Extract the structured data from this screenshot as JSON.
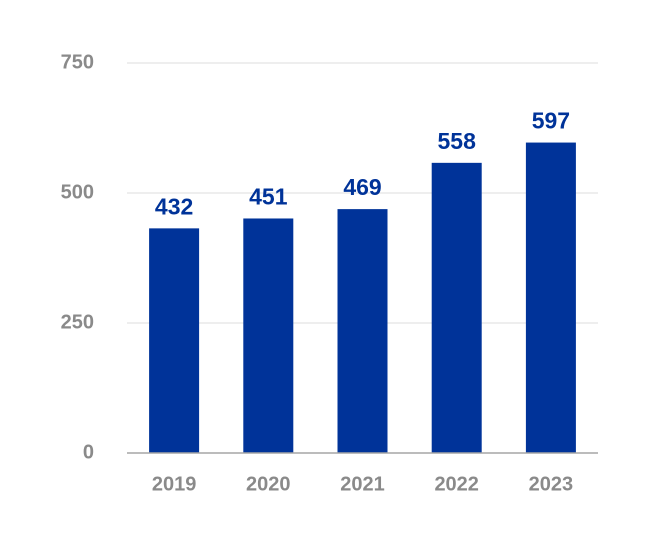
{
  "chart_data": {
    "type": "bar",
    "categories": [
      "2019",
      "2020",
      "2021",
      "2022",
      "2023"
    ],
    "values": [
      432,
      451,
      469,
      558,
      597
    ],
    "data_labels": [
      "432",
      "451",
      "469",
      "558",
      "597"
    ],
    "title": "",
    "xlabel": "",
    "ylabel": "",
    "ylim": [
      0,
      750
    ],
    "y_ticks": [
      0,
      250,
      500,
      750
    ],
    "y_tick_labels": [
      "0",
      "250",
      "500",
      "750"
    ],
    "grid": true,
    "legend": "none",
    "bar_color": "#003399",
    "label_color": "#003399",
    "tick_label_color": "#8a8a8a",
    "grid_color": "#dcdcdc"
  }
}
